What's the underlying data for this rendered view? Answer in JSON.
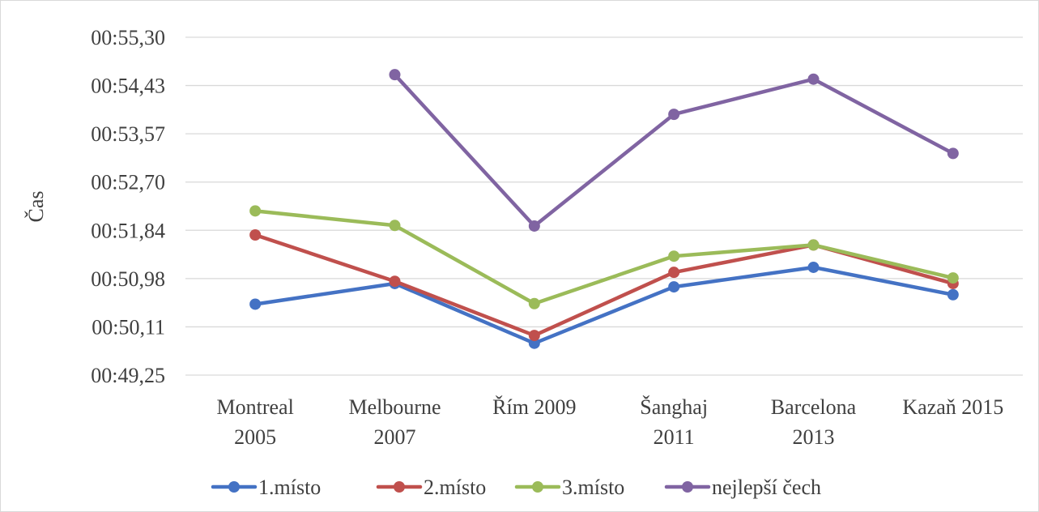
{
  "chart_data": {
    "type": "line",
    "title": "",
    "xlabel": "",
    "ylabel": "Čas",
    "categories": [
      [
        "Montreal",
        "2005"
      ],
      [
        "Melbourne",
        "2007"
      ],
      [
        "Řím 2009"
      ],
      [
        "Šanghaj",
        "2011"
      ],
      [
        "Barcelona",
        "2013"
      ],
      [
        "Kazaň 2015"
      ]
    ],
    "y_tick_labels": [
      "00:49,25",
      "00:50,11",
      "00:50,98",
      "00:51,84",
      "00:52,70",
      "00:53,57",
      "00:54,43",
      "00:55,30"
    ],
    "ylim": [
      49.25,
      55.3
    ],
    "grid": true,
    "legend_position": "bottom",
    "series": [
      {
        "name": "1.místo",
        "color": "#4472C4",
        "values": [
          50.52,
          50.89,
          49.82,
          50.83,
          51.18,
          50.69
        ]
      },
      {
        "name": "2.místo",
        "color": "#C0504D",
        "values": [
          51.76,
          50.93,
          49.96,
          51.09,
          51.58,
          50.89
        ]
      },
      {
        "name": "3.místo",
        "color": "#9BBB59",
        "values": [
          52.19,
          51.93,
          50.53,
          51.38,
          51.58,
          50.99
        ]
      },
      {
        "name": "nejlepší čech",
        "color": "#8064A2",
        "values": [
          null,
          54.63,
          51.92,
          53.92,
          54.55,
          53.22
        ]
      }
    ]
  }
}
